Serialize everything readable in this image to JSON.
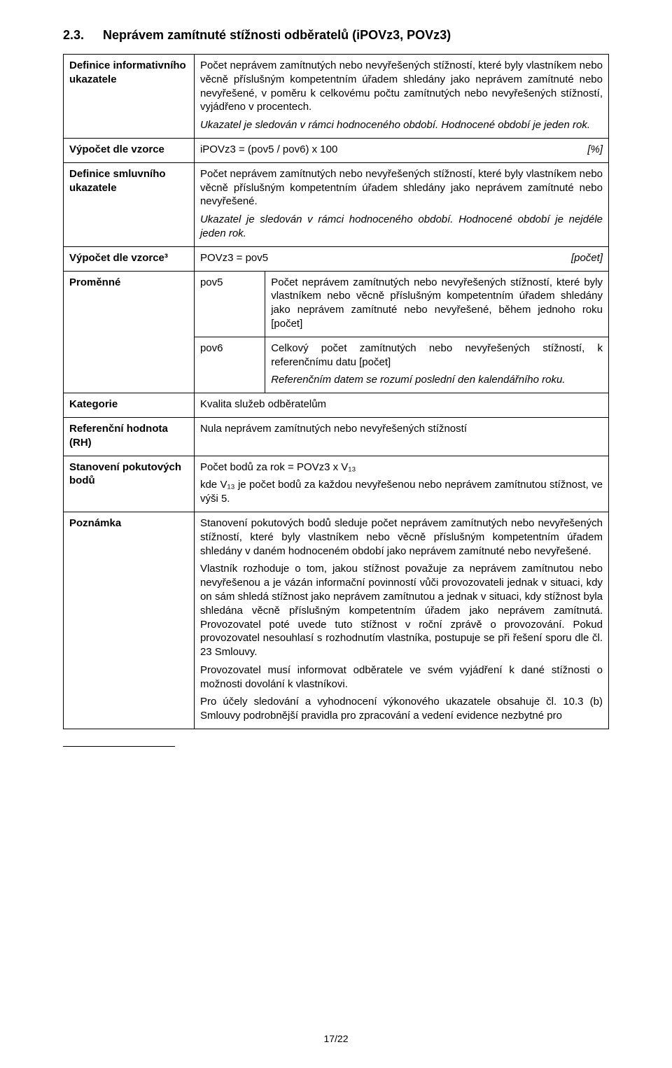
{
  "heading": {
    "number": "2.3.",
    "title": "Neprávem zamítnuté stížnosti odběratelů (iPOVz3, POVz3)"
  },
  "rows": {
    "r1": {
      "label": "Definice informativního ukazatele",
      "p1": "Počet neprávem zamítnutých nebo nevyřešených stížností, které byly vlastníkem nebo věcně příslušným kompetentním úřadem shledány jako neprávem zamítnuté nebo nevyřešené, v poměru k celkovému počtu zamítnutých nebo nevyřešených stížností, vyjádřeno v procentech.",
      "p2": "Ukazatel je sledován v rámci hodnoceného období. Hodnocené období je jeden rok."
    },
    "r2": {
      "label": "Výpočet dle vzorce",
      "formula": "iPOVz3 = (pov5 / pov6) x 100",
      "unit": "[%]"
    },
    "r3": {
      "label": "Definice smluvního ukazatele",
      "p1": "Počet neprávem zamítnutých nebo nevyřešených stížností, které byly vlastníkem nebo věcně příslušným kompetentním úřadem shledány jako neprávem zamítnuté nebo nevyřešené.",
      "p2": "Ukazatel je sledován v rámci hodnoceného období. Hodnocené období je nejdéle jeden rok."
    },
    "r4": {
      "label": "Výpočet dle vzorce³",
      "formula": "POVz3 = pov5",
      "unit": "[počet]"
    },
    "r5": {
      "label": "Proměnné",
      "pov5_label": "pov5",
      "pov5_text": "Počet neprávem zamítnutých nebo nevyřešených stížností, které byly vlastníkem nebo věcně příslušným kompetentním úřadem shledány jako neprávem zamítnuté nebo nevyřešené, během jednoho roku [počet]",
      "pov6_label": "pov6",
      "pov6_text": "Celkový počet zamítnutých nebo nevyřešených stížností, k referenčnímu datu [počet]",
      "pov6_note": "Referenčním datem se rozumí poslední den kalendářního roku."
    },
    "r6": {
      "label": "Kategorie",
      "text": "Kvalita služeb odběratelům"
    },
    "r7": {
      "label": "Referenční hodnota (RH)",
      "text": "Nula neprávem zamítnutých nebo nevyřešených stížností"
    },
    "r8": {
      "label": "Stanovení pokutových bodů",
      "p1": "Počet bodů za rok = POVz3 x V₁₃",
      "p2": "kde V₁₃ je počet bodů za každou nevyřešenou nebo neprávem zamítnutou stížnost, ve výši 5."
    },
    "r9": {
      "label": "Poznámka",
      "p1": "Stanovení pokutových bodů sleduje počet neprávem zamítnutých nebo nevyřešených stížností, které byly vlastníkem nebo věcně příslušným kompetentním úřadem shledány v daném hodnoceném období jako neprávem zamítnuté nebo nevyřešené.",
      "p2": "Vlastník rozhoduje o tom, jakou stížnost považuje za neprávem zamítnutou nebo nevyřešenou a je vázán informační povinností vůči provozovateli jednak v situaci, kdy on sám shledá stížnost jako neprávem zamítnutou a jednak v situaci, kdy stížnost byla shledána věcně příslušným kompetentním úřadem jako neprávem zamítnutá. Provozovatel poté uvede tuto stížnost v roční zprávě o provozování. Pokud provozovatel nesouhlasí s rozhodnutím vlastníka, postupuje se při řešení sporu dle čl. 23 Smlouvy.",
      "p3": "Provozovatel musí informovat odběratele ve svém vyjádření k dané stížnosti o možnosti dovolání k vlastníkovi.",
      "p4": "Pro účely sledování a vyhodnocení výkonového ukazatele obsahuje čl. 10.3 (b) Smlouvy podrobnější pravidla pro zpracování a vedení evidence nezbytné pro"
    }
  },
  "footer": "17/22"
}
